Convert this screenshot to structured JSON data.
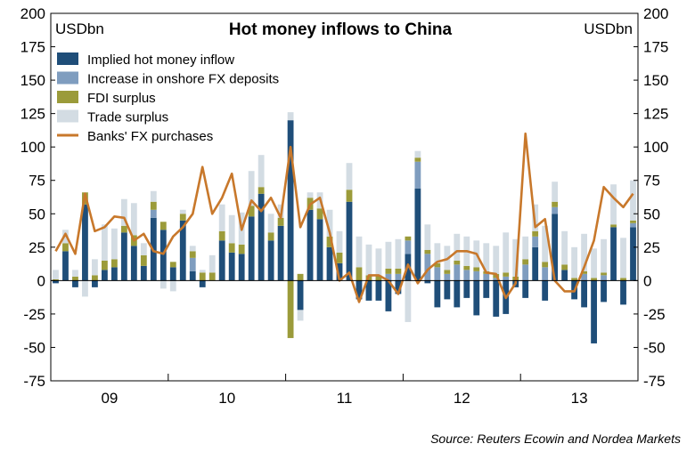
{
  "chart_data": {
    "type": "bar",
    "title": "Hot money inflows to China",
    "ylabel_left": "USDbn",
    "ylabel_right": "USDbn",
    "source": "Source: Reuters Ecowin and Nordea Markets",
    "ylim": [
      -75,
      200
    ],
    "yticks": [
      -75,
      -50,
      -25,
      0,
      25,
      50,
      75,
      100,
      125,
      150,
      175,
      200
    ],
    "year_labels": [
      {
        "label": "09",
        "index": 6
      },
      {
        "label": "10",
        "index": 18
      },
      {
        "label": "11",
        "index": 30
      },
      {
        "label": "12",
        "index": 42
      },
      {
        "label": "13",
        "index": 54
      }
    ],
    "year_boundaries": [
      0,
      12,
      24,
      36,
      48,
      60
    ],
    "series": [
      {
        "name": "Implied hot money inflow",
        "color": "#1F4E79",
        "values": [
          -2,
          22,
          -5,
          57,
          -5,
          8,
          10,
          36,
          26,
          11,
          47,
          38,
          10,
          45,
          7,
          -5,
          0,
          30,
          21,
          20,
          48,
          65,
          30,
          41,
          120,
          -22,
          53,
          46,
          25,
          13,
          59,
          -14,
          -15,
          -15,
          -23,
          -10,
          20,
          69,
          -2,
          -20,
          -14,
          -20,
          -13,
          -26,
          -13,
          -27,
          -25,
          -5,
          -13,
          25,
          -15,
          50,
          8,
          -14,
          -20,
          -47,
          -16,
          40,
          -18,
          40
        ]
      },
      {
        "name": "Increase in onshore FX deposits",
        "color": "#7F9DBF",
        "values": [
          0,
          0,
          0,
          0,
          0,
          0,
          0,
          0,
          0,
          0,
          6,
          0,
          0,
          0,
          10,
          0,
          0,
          0,
          0,
          0,
          0,
          0,
          0,
          0,
          0,
          0,
          0,
          0,
          0,
          0,
          0,
          0,
          0,
          0,
          5,
          5,
          10,
          20,
          20,
          10,
          5,
          12,
          8,
          7,
          5,
          2,
          3,
          0,
          12,
          8,
          10,
          5,
          0,
          0,
          5,
          0,
          4,
          0,
          0,
          3
        ]
      },
      {
        "name": "FDI surplus",
        "color": "#9B9B3A",
        "values": [
          1,
          6,
          3,
          9,
          4,
          7,
          6,
          5,
          8,
          8,
          6,
          6,
          4,
          5,
          5,
          6,
          6,
          7,
          7,
          7,
          8,
          5,
          6,
          6,
          -43,
          5,
          9,
          8,
          8,
          8,
          9,
          10,
          4,
          4,
          4,
          4,
          3,
          3,
          3,
          3,
          3,
          3,
          3,
          3,
          2,
          3,
          3,
          3,
          4,
          4,
          4,
          4,
          4,
          2,
          2,
          2,
          2,
          2,
          2,
          2
        ]
      },
      {
        "name": "Trade surplus",
        "color": "#D3DCE3",
        "values": [
          7,
          10,
          5,
          -12,
          12,
          27,
          23,
          20,
          24,
          9,
          8,
          -6,
          -8,
          3,
          4,
          2,
          13,
          20,
          21,
          24,
          26,
          24,
          14,
          10,
          6,
          -8,
          4,
          12,
          20,
          16,
          20,
          23,
          23,
          20,
          20,
          22,
          -31,
          5,
          19,
          15,
          18,
          20,
          22,
          20,
          21,
          21,
          30,
          28,
          17,
          20,
          27,
          15,
          25,
          23,
          28,
          22,
          25,
          30,
          30,
          30
        ]
      },
      {
        "name": "Banks' FX purchases",
        "color": "#C8782B",
        "type": "line",
        "values": [
          22,
          35,
          20,
          65,
          37,
          40,
          48,
          47,
          30,
          35,
          22,
          20,
          33,
          40,
          50,
          85,
          50,
          62,
          80,
          38,
          60,
          52,
          62,
          47,
          100,
          40,
          57,
          62,
          36,
          0,
          6,
          -16,
          4,
          4,
          0,
          -10,
          12,
          -2,
          8,
          14,
          16,
          22,
          22,
          20,
          6,
          5,
          -13,
          -2,
          110,
          40,
          46,
          0,
          -8,
          -8,
          10,
          30,
          70,
          62,
          55,
          65
        ]
      }
    ]
  }
}
